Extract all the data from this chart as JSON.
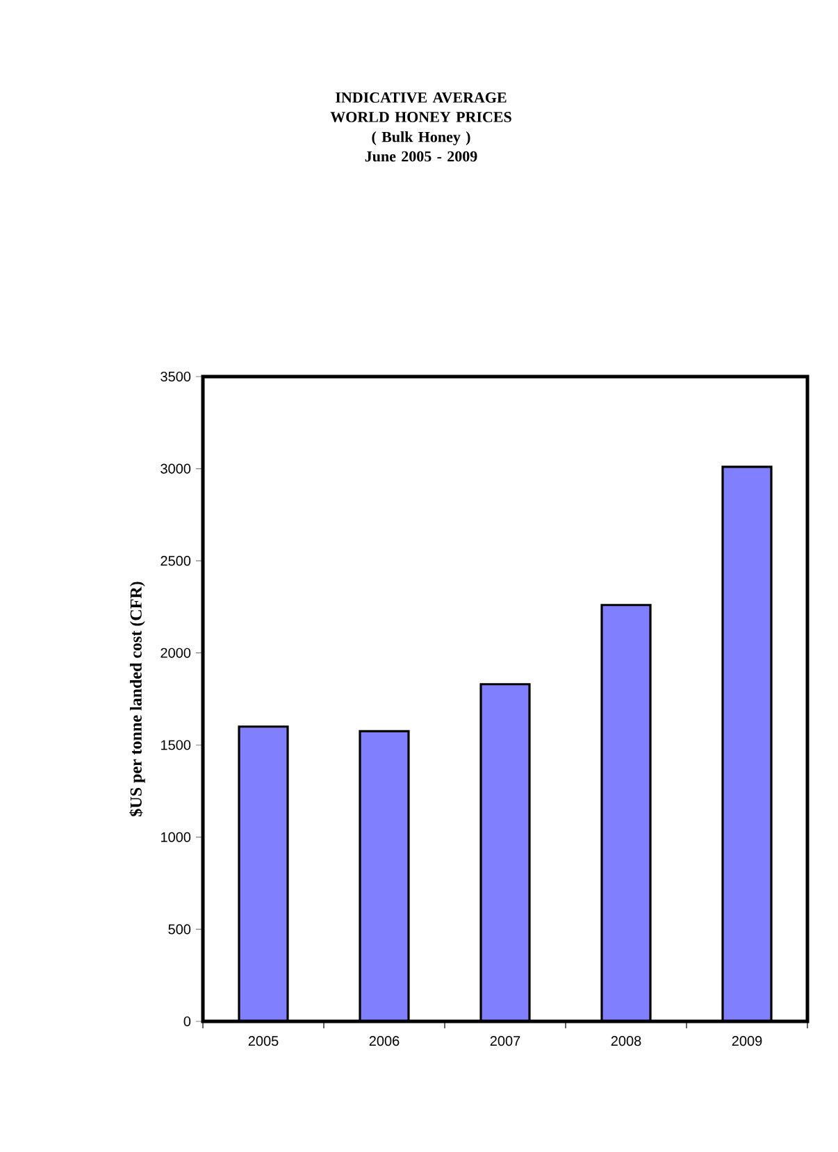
{
  "chart_data": {
    "type": "bar",
    "title": "INDICATIVE AVERAGE WORLD HONEY PRICES",
    "subtitle": "( Bulk Honey ) June 2005 - 2009",
    "ylabel": "$US per tonne landed cost (CFR)",
    "categories": [
      "2005",
      "2006",
      "2007",
      "2008",
      "2009"
    ],
    "values": [
      1600,
      1575,
      1830,
      2260,
      3010
    ],
    "color": "#8080ff",
    "ylim": [
      0,
      3500
    ],
    "yticks": [
      0,
      500,
      1000,
      1500,
      2000,
      2500,
      3000,
      3500
    ],
    "grid": false
  }
}
